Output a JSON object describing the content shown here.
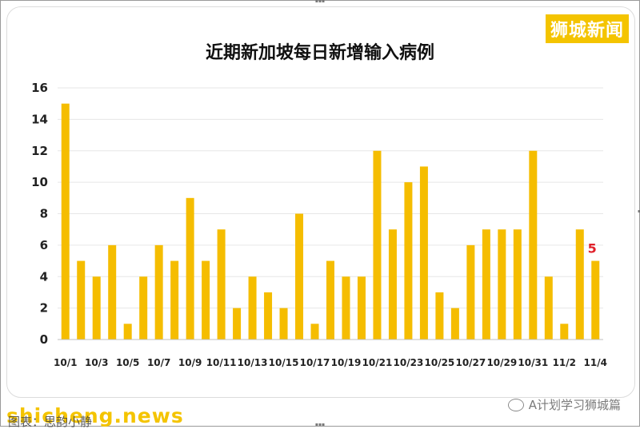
{
  "watermark_top_right": "狮城新闻",
  "watermark_bottom_left": "shicheng.news",
  "watermark_bottom_right": "A计划学习狮城篇",
  "source_text": "图表：思韵小静",
  "colors": {
    "bar": "#f5bd00",
    "label": "#e0202a",
    "brand": "#f4c400"
  },
  "chart_data": {
    "type": "bar",
    "title": "近期新加坡每日新增输入病例",
    "xlabel": "",
    "ylabel": "",
    "ylim": [
      0,
      16
    ],
    "yticks": [
      0,
      2,
      4,
      6,
      8,
      10,
      12,
      14,
      16
    ],
    "grid": true,
    "categories": [
      "10/1",
      "10/2",
      "10/3",
      "10/4",
      "10/5",
      "10/6",
      "10/7",
      "10/8",
      "10/9",
      "10/10",
      "10/11",
      "10/12",
      "10/13",
      "10/14",
      "10/15",
      "10/16",
      "10/17",
      "10/18",
      "10/19",
      "10/20",
      "10/21",
      "10/22",
      "10/23",
      "10/24",
      "10/25",
      "10/26",
      "10/27",
      "10/28",
      "10/29",
      "10/30",
      "10/31",
      "11/1",
      "11/2",
      "11/3",
      "11/4"
    ],
    "tick_labels": [
      "10/1",
      "10/3",
      "10/5",
      "10/7",
      "10/9",
      "10/11",
      "10/13",
      "10/15",
      "10/17",
      "10/19",
      "10/21",
      "10/23",
      "10/25",
      "10/27",
      "10/29",
      "10/31",
      "11/2",
      "11/4"
    ],
    "values": [
      15,
      5,
      4,
      6,
      1,
      4,
      6,
      5,
      9,
      5,
      7,
      2,
      4,
      3,
      2,
      8,
      1,
      5,
      4,
      4,
      12,
      7,
      10,
      11,
      3,
      2,
      6,
      7,
      7,
      7,
      12,
      4,
      1,
      7,
      5
    ],
    "data_labels": [
      {
        "category": "11/4",
        "text": "5"
      }
    ]
  }
}
